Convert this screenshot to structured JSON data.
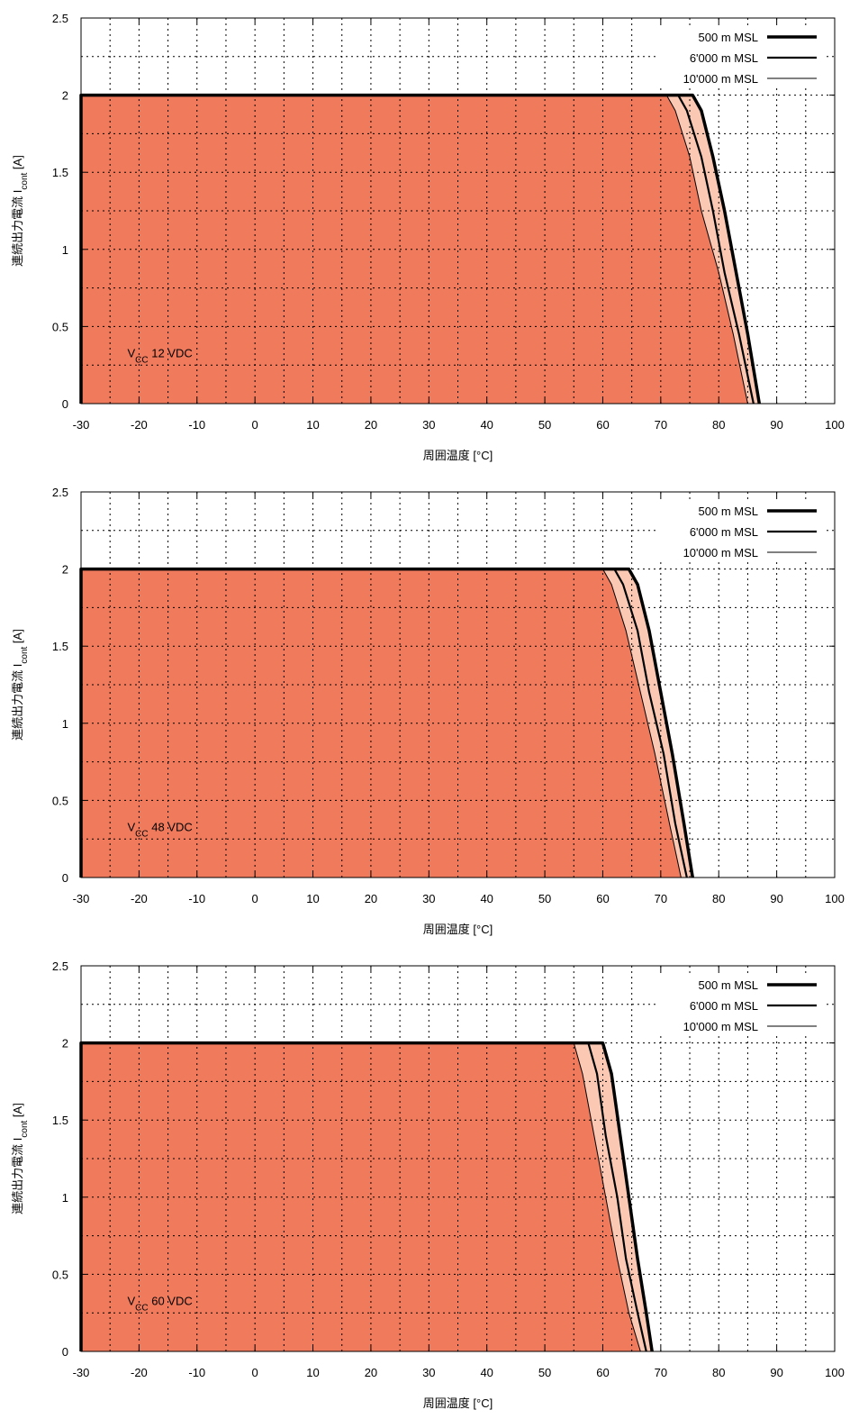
{
  "chart_data": [
    {
      "type": "area",
      "xlabel": "周囲温度 [°C]",
      "ylabel": {
        "main": "連続出力電流 I",
        "sub": "cont",
        "tail": " [A]"
      },
      "xlim": [
        -30,
        100
      ],
      "ylim": [
        0,
        2.5
      ],
      "xticks": [
        -30,
        -20,
        -10,
        0,
        10,
        20,
        30,
        40,
        50,
        60,
        70,
        80,
        90,
        100
      ],
      "yticks": [
        0,
        0.5,
        1,
        1.5,
        2,
        2.5
      ],
      "grid": true,
      "legend_position": "top-right",
      "annotation": {
        "main": "V",
        "sub": "CC",
        "tail": " 12 VDC"
      },
      "series": [
        {
          "name": "500 m MSL",
          "x": [
            -30,
            75.5,
            77,
            79,
            81,
            83,
            85,
            87
          ],
          "y": [
            2,
            2,
            1.9,
            1.6,
            1.25,
            0.85,
            0.45,
            0
          ]
        },
        {
          "name": "6'000 m MSL",
          "x": [
            -30,
            73,
            74.5,
            77,
            79,
            81,
            83.5,
            86
          ],
          "y": [
            2,
            2,
            1.9,
            1.6,
            1.25,
            0.85,
            0.45,
            0
          ]
        },
        {
          "name": "10'000 m MSL",
          "x": [
            -30,
            71,
            72.5,
            75,
            77,
            80,
            82.5,
            85
          ],
          "y": [
            2,
            2,
            1.9,
            1.6,
            1.25,
            0.85,
            0.45,
            0
          ]
        }
      ]
    },
    {
      "type": "area",
      "xlabel": "周囲温度 [°C]",
      "ylabel": {
        "main": "連続出力電流 I",
        "sub": "cont",
        "tail": " [A]"
      },
      "xlim": [
        -30,
        100
      ],
      "ylim": [
        0,
        2.5
      ],
      "xticks": [
        -30,
        -20,
        -10,
        0,
        10,
        20,
        30,
        40,
        50,
        60,
        70,
        80,
        90,
        100
      ],
      "yticks": [
        0,
        0.5,
        1,
        1.5,
        2,
        2.5
      ],
      "grid": true,
      "legend_position": "top-right",
      "annotation": {
        "main": "V",
        "sub": "CC",
        "tail": " 48 VDC"
      },
      "series": [
        {
          "name": "500 m MSL",
          "x": [
            -30,
            64.5,
            66,
            68,
            70,
            72,
            74,
            75.5
          ],
          "y": [
            2,
            2,
            1.9,
            1.6,
            1.2,
            0.8,
            0.35,
            0
          ]
        },
        {
          "name": "6'000 m MSL",
          "x": [
            -30,
            62,
            63.5,
            66,
            68,
            70.5,
            72.5,
            74.5
          ],
          "y": [
            2,
            2,
            1.9,
            1.6,
            1.2,
            0.8,
            0.35,
            0
          ]
        },
        {
          "name": "10'000 m MSL",
          "x": [
            -30,
            60,
            61.5,
            64,
            66.5,
            69,
            71.5,
            73.5
          ],
          "y": [
            2,
            2,
            1.9,
            1.6,
            1.2,
            0.8,
            0.35,
            0
          ]
        }
      ]
    },
    {
      "type": "area",
      "xlabel": "周囲温度 [°C]",
      "ylabel": {
        "main": "連続出力電流 I",
        "sub": "cont",
        "tail": " [A]"
      },
      "xlim": [
        -30,
        100
      ],
      "ylim": [
        0,
        2.5
      ],
      "xticks": [
        -30,
        -20,
        -10,
        0,
        10,
        20,
        30,
        40,
        50,
        60,
        70,
        80,
        90,
        100
      ],
      "yticks": [
        0,
        0.5,
        1,
        1.5,
        2,
        2.5
      ],
      "grid": true,
      "legend_position": "top-right",
      "annotation": {
        "main": "V",
        "sub": "CC",
        "tail": " 60 VDC"
      },
      "series": [
        {
          "name": "500 m MSL",
          "x": [
            -30,
            60,
            61.5,
            63,
            64.5,
            66,
            67.5,
            68.5
          ],
          "y": [
            2,
            2,
            1.8,
            1.4,
            1.0,
            0.6,
            0.25,
            0
          ]
        },
        {
          "name": "6'000 m MSL",
          "x": [
            -30,
            57.5,
            59,
            60.5,
            62.5,
            64,
            66,
            67.5
          ],
          "y": [
            2,
            2,
            1.8,
            1.4,
            1.0,
            0.6,
            0.25,
            0
          ]
        },
        {
          "name": "10'000 m MSL",
          "x": [
            -30,
            55,
            56.5,
            58.5,
            60.5,
            62.5,
            64.5,
            66.5
          ],
          "y": [
            2,
            2,
            1.8,
            1.4,
            1.0,
            0.6,
            0.25,
            0
          ]
        }
      ]
    }
  ],
  "colors": {
    "fill_main": "#f07a5c",
    "fill_band": "#fbc8b4",
    "line": "#000000",
    "grid": "#000000"
  }
}
